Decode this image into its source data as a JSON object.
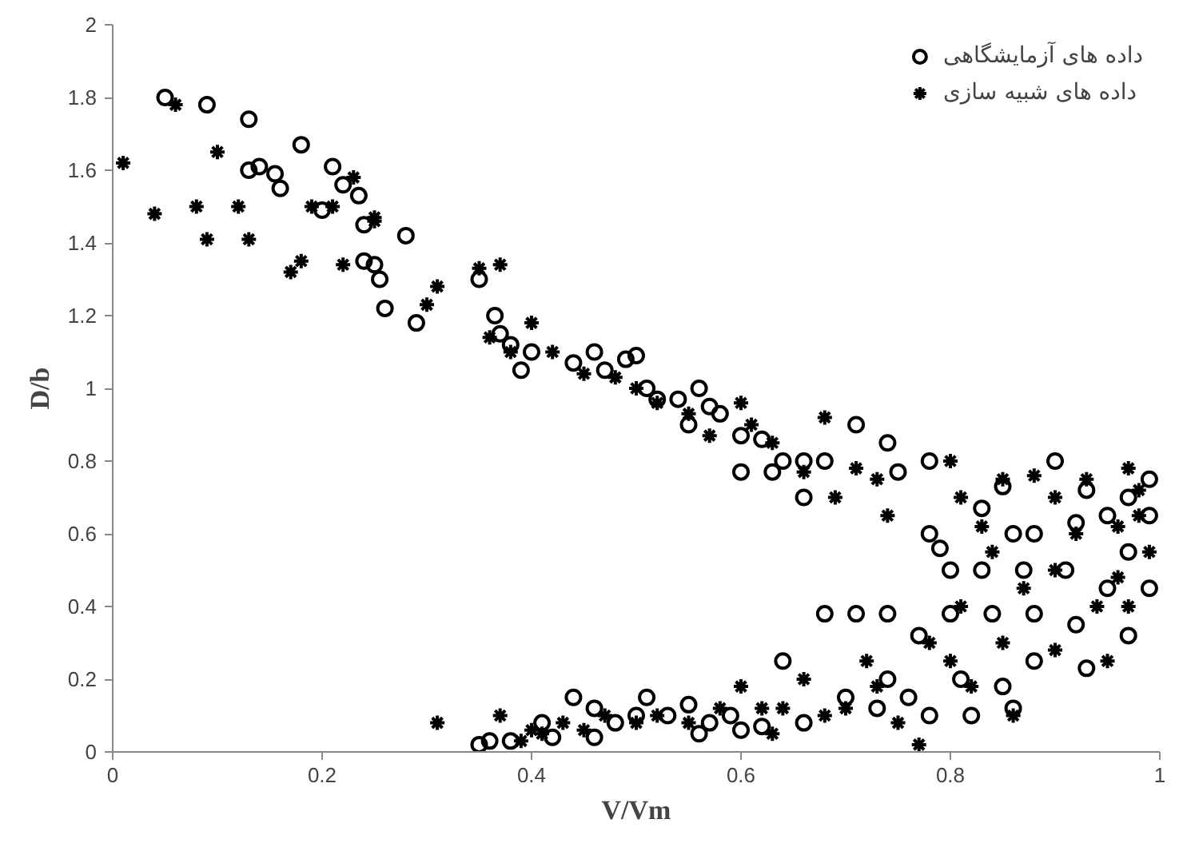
{
  "chart_data": {
    "type": "scatter",
    "xlabel": "V/Vm",
    "ylabel": "D/b",
    "xlim": [
      0,
      1
    ],
    "ylim": [
      0,
      2
    ],
    "xticks": [
      0,
      0.2,
      0.4,
      0.6,
      0.8,
      1
    ],
    "yticks": [
      0,
      0.2,
      0.4,
      0.6,
      0.8,
      1,
      1.2,
      1.4,
      1.6,
      1.8,
      2
    ],
    "grid": false,
    "legend": "top right",
    "series": [
      {
        "name": "داده های آزمایشگاهی",
        "color": "#000000",
        "marker": "circle",
        "x": [
          0.05,
          0.09,
          0.13,
          0.18,
          0.13,
          0.14,
          0.155,
          0.16,
          0.2,
          0.21,
          0.22,
          0.235,
          0.24,
          0.24,
          0.25,
          0.255,
          0.26,
          0.28,
          0.29,
          0.35,
          0.365,
          0.37,
          0.38,
          0.39,
          0.4,
          0.44,
          0.46,
          0.47,
          0.49,
          0.5,
          0.51,
          0.52,
          0.54,
          0.55,
          0.56,
          0.57,
          0.58,
          0.6,
          0.6,
          0.62,
          0.63,
          0.64,
          0.66,
          0.66,
          0.68,
          0.71,
          0.74,
          0.75,
          0.78,
          0.78,
          0.79,
          0.8,
          0.83,
          0.85,
          0.86,
          0.88,
          0.9,
          0.92,
          0.95,
          0.97,
          0.99,
          0.83,
          0.87,
          0.91,
          0.95,
          0.99,
          0.68,
          0.71,
          0.74,
          0.8,
          0.84,
          0.88,
          0.92,
          0.97,
          0.77,
          0.88,
          0.93,
          0.81,
          0.85,
          0.78,
          0.82,
          0.86,
          0.73,
          0.7,
          0.64,
          0.62,
          0.66,
          0.59,
          0.57,
          0.55,
          0.53,
          0.51,
          0.5,
          0.48,
          0.46,
          0.46,
          0.44,
          0.42,
          0.41,
          0.38,
          0.35,
          0.36,
          0.56,
          0.6,
          0.74,
          0.76,
          0.97,
          0.99,
          0.93
        ],
        "values": [
          1.8,
          1.78,
          1.74,
          1.67,
          1.6,
          1.61,
          1.59,
          1.55,
          1.49,
          1.61,
          1.56,
          1.53,
          1.45,
          1.35,
          1.34,
          1.3,
          1.22,
          1.42,
          1.18,
          1.3,
          1.2,
          1.15,
          1.12,
          1.05,
          1.1,
          1.07,
          1.1,
          1.05,
          1.08,
          1.09,
          1.0,
          0.97,
          0.97,
          0.9,
          1.0,
          0.95,
          0.93,
          0.87,
          0.77,
          0.86,
          0.77,
          0.8,
          0.8,
          0.7,
          0.8,
          0.9,
          0.85,
          0.77,
          0.8,
          0.6,
          0.56,
          0.5,
          0.67,
          0.73,
          0.6,
          0.6,
          0.8,
          0.63,
          0.65,
          0.7,
          0.65,
          0.5,
          0.5,
          0.5,
          0.45,
          0.45,
          0.38,
          0.38,
          0.38,
          0.38,
          0.38,
          0.38,
          0.35,
          0.32,
          0.32,
          0.25,
          0.23,
          0.2,
          0.18,
          0.1,
          0.1,
          0.12,
          0.12,
          0.15,
          0.25,
          0.07,
          0.08,
          0.1,
          0.08,
          0.13,
          0.1,
          0.15,
          0.1,
          0.08,
          0.04,
          0.12,
          0.15,
          0.04,
          0.08,
          0.03,
          0.02,
          0.03,
          0.05,
          0.06,
          0.2,
          0.15,
          0.55,
          0.75,
          0.72
        ]
      },
      {
        "name": "داده های شبیه سازی",
        "color": "#000000",
        "marker": "cross",
        "x": [
          0.01,
          0.04,
          0.06,
          0.08,
          0.09,
          0.1,
          0.12,
          0.13,
          0.17,
          0.18,
          0.19,
          0.21,
          0.22,
          0.23,
          0.25,
          0.25,
          0.3,
          0.31,
          0.35,
          0.37,
          0.36,
          0.38,
          0.4,
          0.42,
          0.45,
          0.48,
          0.5,
          0.52,
          0.55,
          0.57,
          0.6,
          0.61,
          0.63,
          0.66,
          0.68,
          0.69,
          0.71,
          0.73,
          0.74,
          0.8,
          0.81,
          0.83,
          0.85,
          0.88,
          0.9,
          0.93,
          0.97,
          0.98,
          0.84,
          0.87,
          0.9,
          0.94,
          0.96,
          0.99,
          0.81,
          0.85,
          0.78,
          0.8,
          0.82,
          0.9,
          0.95,
          0.97,
          0.72,
          0.73,
          0.7,
          0.75,
          0.68,
          0.66,
          0.62,
          0.64,
          0.6,
          0.58,
          0.55,
          0.52,
          0.5,
          0.47,
          0.45,
          0.43,
          0.41,
          0.4,
          0.37,
          0.31,
          0.39,
          0.63,
          0.77,
          0.86,
          0.92,
          0.96,
          0.98
        ],
        "values": [
          1.62,
          1.48,
          1.78,
          1.5,
          1.41,
          1.65,
          1.5,
          1.41,
          1.32,
          1.35,
          1.5,
          1.5,
          1.34,
          1.58,
          1.46,
          1.47,
          1.23,
          1.28,
          1.33,
          1.34,
          1.14,
          1.1,
          1.18,
          1.1,
          1.04,
          1.03,
          1.0,
          0.96,
          0.93,
          0.87,
          0.96,
          0.9,
          0.85,
          0.77,
          0.92,
          0.7,
          0.78,
          0.75,
          0.65,
          0.8,
          0.7,
          0.62,
          0.75,
          0.76,
          0.7,
          0.75,
          0.78,
          0.65,
          0.55,
          0.45,
          0.5,
          0.4,
          0.48,
          0.55,
          0.4,
          0.3,
          0.3,
          0.25,
          0.18,
          0.28,
          0.25,
          0.4,
          0.25,
          0.18,
          0.12,
          0.08,
          0.1,
          0.2,
          0.12,
          0.12,
          0.18,
          0.12,
          0.08,
          0.1,
          0.08,
          0.1,
          0.06,
          0.08,
          0.05,
          0.06,
          0.1,
          0.08,
          0.03,
          0.05,
          0.02,
          0.1,
          0.6,
          0.62,
          0.72
        ]
      }
    ]
  }
}
